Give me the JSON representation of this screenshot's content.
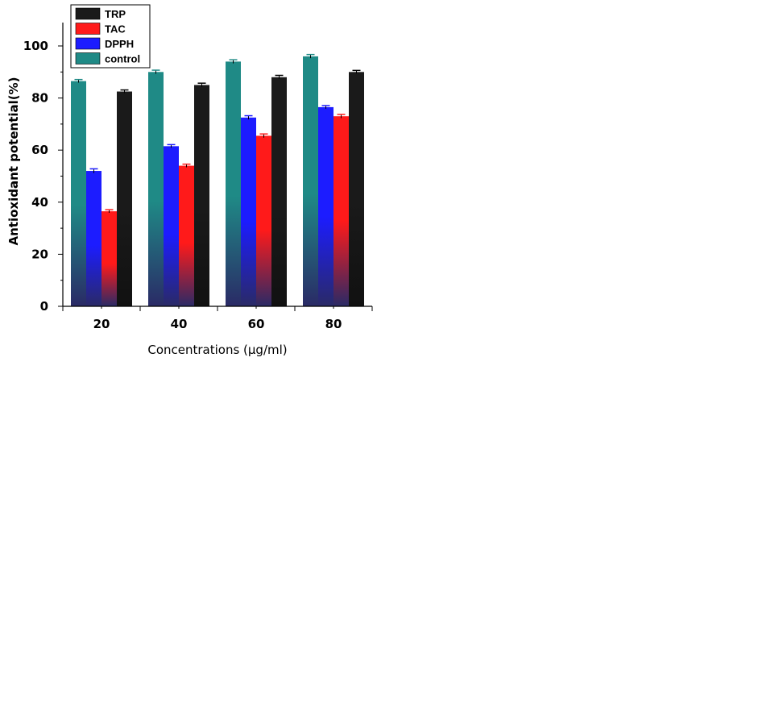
{
  "chart_data": {
    "type": "bar",
    "categories": [
      "20",
      "40",
      "60",
      "80"
    ],
    "series": [
      {
        "name": "control",
        "color": "#1f8a86",
        "values": [
          86.5,
          90,
          94,
          96
        ],
        "errors": [
          0.6,
          0.7,
          0.7,
          0.7
        ]
      },
      {
        "name": "DPPH",
        "color": "#1c1cff",
        "values": [
          52,
          61.5,
          72.5,
          76.5
        ],
        "errors": [
          0.8,
          0.6,
          0.7,
          0.6
        ]
      },
      {
        "name": "TAC",
        "color": "#ff1a1a",
        "values": [
          36.5,
          54,
          65.5,
          73
        ],
        "errors": [
          0.6,
          0.6,
          0.7,
          0.7
        ]
      },
      {
        "name": "TRP",
        "color": "#1a1a1a",
        "values": [
          82.5,
          85,
          88,
          90
        ],
        "errors": [
          0.6,
          0.7,
          0.7,
          0.6
        ]
      }
    ],
    "legend_order": [
      "TRP",
      "TAC",
      "DPPH",
      "control"
    ],
    "xlabel": "Concentrations (µg/ml)",
    "ylabel": "Antioxidant potential(%)",
    "ylim": [
      0,
      100
    ],
    "yticks": [
      0,
      20,
      40,
      60,
      80,
      100
    ],
    "grid": false,
    "legend_position": "top-left"
  }
}
